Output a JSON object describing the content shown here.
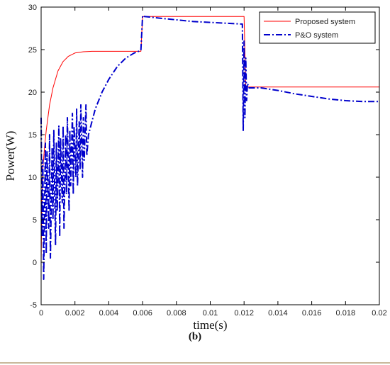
{
  "chart_data": {
    "type": "line",
    "xlabel": "time(s)",
    "ylabel": "Power(W)",
    "xlim": [
      0,
      0.02
    ],
    "ylim": [
      -5,
      30
    ],
    "xticks": [
      0,
      0.002,
      0.004,
      0.006,
      0.008,
      0.01,
      0.012,
      0.014,
      0.016,
      0.018,
      0.02
    ],
    "xtick_labels": [
      "0",
      "0.002",
      "0.004",
      "0.006",
      "0.008",
      "0.01",
      "0.012",
      "0.014",
      "0.016",
      "0.018",
      "0.02"
    ],
    "yticks": [
      -5,
      0,
      5,
      10,
      15,
      20,
      25,
      30
    ],
    "ytick_labels": [
      "-5",
      "0",
      "5",
      "10",
      "15",
      "20",
      "25",
      "30"
    ],
    "grid": false,
    "legend_position": "top-right",
    "series": [
      {
        "name": "Proposed system",
        "color": "#ff0000",
        "style": "solid",
        "x": [
          0,
          5e-05,
          0.0001,
          0.0002,
          0.0003,
          0.0005,
          0.0007,
          0.001,
          0.0013,
          0.0016,
          0.002,
          0.0025,
          0.003,
          0.0035,
          0.0045,
          0.0059,
          0.006,
          0.0061,
          0.008,
          0.01,
          0.0119,
          0.012,
          0.0121,
          0.0124,
          0.014,
          0.016,
          0.018,
          0.02
        ],
        "y": [
          0,
          8,
          11,
          13.5,
          15.5,
          18.5,
          20.5,
          22.5,
          23.6,
          24.2,
          24.6,
          24.75,
          24.8,
          24.8,
          24.8,
          24.8,
          28.9,
          28.9,
          28.9,
          28.9,
          28.9,
          28.9,
          20.6,
          20.6,
          20.6,
          20.6,
          20.6,
          20.6
        ]
      },
      {
        "name": "P&O system",
        "color": "#0000cc",
        "style": "dash-dot",
        "x": [
          0,
          5e-05,
          0.0001,
          0.00015,
          0.00025,
          0.0003,
          0.00035,
          0.00045,
          0.0005,
          0.00055,
          0.00065,
          0.0007,
          0.00075,
          0.00085,
          0.0009,
          0.00095,
          0.00105,
          0.0011,
          0.00115,
          0.00125,
          0.0013,
          0.00135,
          0.00145,
          0.0015,
          0.00155,
          0.00165,
          0.0017,
          0.00175,
          0.00185,
          0.0019,
          0.00195,
          0.00205,
          0.0021,
          0.00215,
          0.00225,
          0.0023,
          0.00235,
          0.00245,
          0.0025,
          0.00255,
          0.00265,
          0.0027,
          0.0028,
          0.0032,
          0.0036,
          0.004,
          0.0045,
          0.005,
          0.0055,
          0.0059,
          0.006,
          0.0061,
          0.007,
          0.008,
          0.009,
          0.01,
          0.011,
          0.0119,
          0.01195,
          0.012,
          0.01205,
          0.0121,
          0.01215,
          0.0122,
          0.0123,
          0.013,
          0.014,
          0.015,
          0.016,
          0.017,
          0.018,
          0.019,
          0.0195,
          0.02
        ],
        "y": [
          17,
          3,
          12,
          -2,
          14,
          1,
          13,
          4,
          15,
          0.5,
          13.5,
          5,
          15.5,
          2,
          14,
          6,
          16,
          3,
          14.5,
          7,
          16,
          4,
          15,
          8,
          17,
          6,
          15.5,
          9,
          17.5,
          8,
          16,
          10,
          18,
          9,
          16.5,
          11,
          18.5,
          10,
          17,
          12,
          18.5,
          12.5,
          15,
          18,
          20,
          21.5,
          23,
          24,
          24.6,
          24.9,
          29,
          28.9,
          28.7,
          28.5,
          28.3,
          28.2,
          28.1,
          28,
          15.5,
          26,
          17,
          24,
          19,
          21,
          20.5,
          20.5,
          20.2,
          19.8,
          19.5,
          19.2,
          19,
          18.9,
          18.9,
          18.9
        ]
      }
    ]
  },
  "caption": "(b)"
}
